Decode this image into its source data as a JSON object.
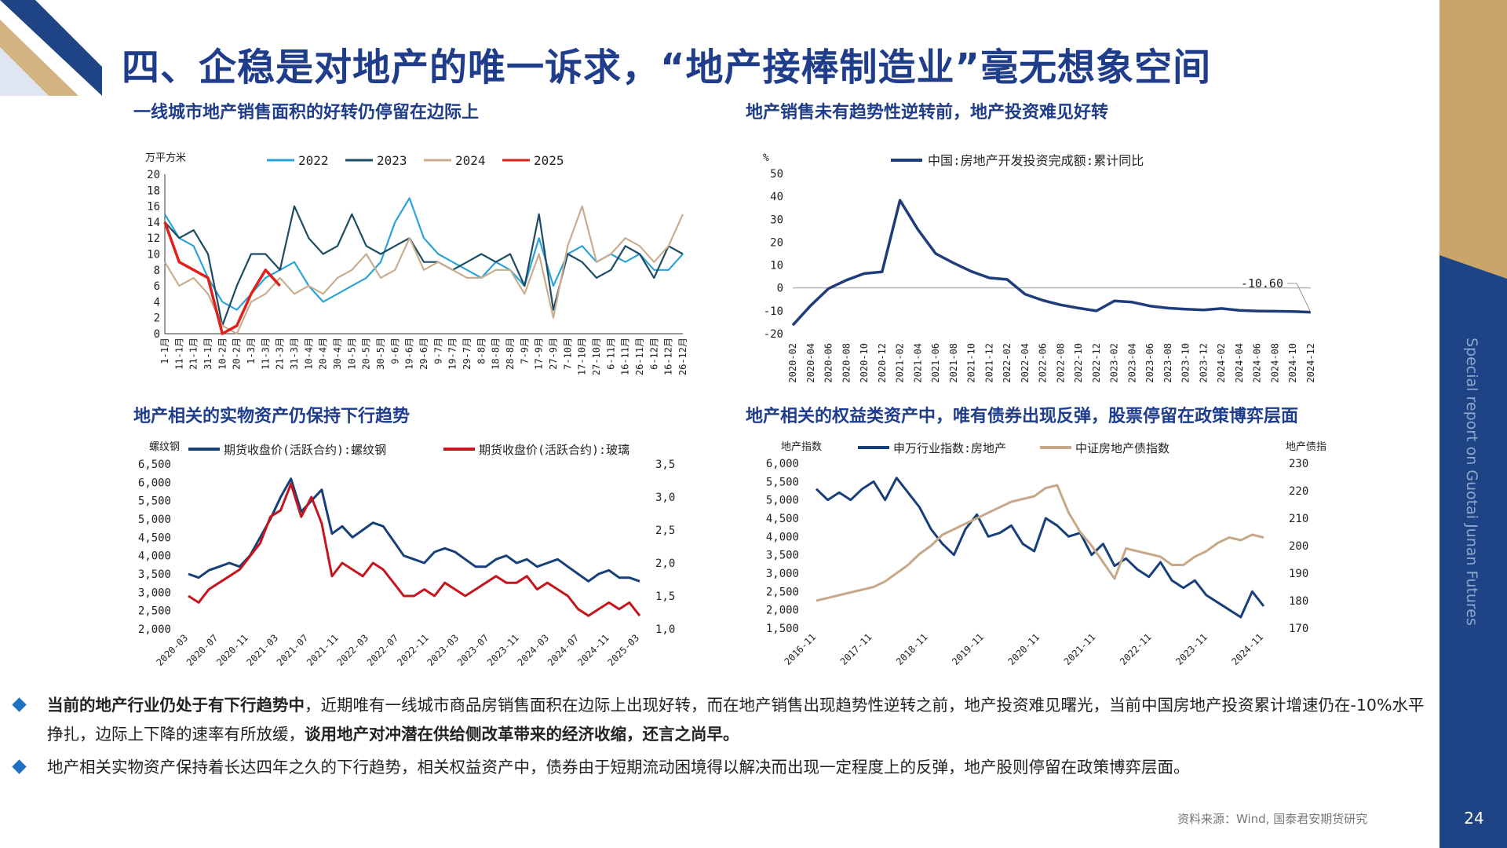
{
  "page": {
    "title": "四、企稳是对地产的唯一诉求，“地产接棒制造业”毫无想象空间",
    "side_text": "Special report on Guotai Junan Futures",
    "page_number": "24",
    "source": "资料来源：Wind, 国泰君安期货研究",
    "bullets": [
      {
        "bold1": "当前的地产行业仍处于有下行趋势中",
        "text1": "，近期唯有一线城市商品房销售面积在边际上出现好转，而在地产销售出现趋势性逆转之前，地产投资难见曙光，当前中国房地产投资累计增速仍在-10%水平挣扎，边际上下降的速率有所放缓，",
        "bold2": "谈用地产对冲潜在供给侧改革带来的经济收缩，还言之尚早。"
      },
      {
        "text1": "地产相关实物资产保持着长达四年之久的下行趋势，相关权益资产中，债券由于短期流动困境得以解决而出现一定程度上的反弹，地产股则停留在政策博弈层面。"
      }
    ],
    "colors": {
      "title": "#1f3d8a",
      "band": "#1f4486",
      "gold": "#c9a56a",
      "bullet": "#1f6fc5"
    }
  },
  "chart_data": [
    {
      "id": "c1",
      "type": "line",
      "title": "一线城市地产销售面积的好转仍停留在边际上",
      "ylabel": "万平方米",
      "ylim": [
        0,
        20
      ],
      "yticks": [
        "0",
        "2",
        "4",
        "6",
        "8",
        "10",
        "12",
        "14",
        "16",
        "18",
        "20"
      ],
      "xticks": [
        "1-1月",
        "11-1月",
        "21-1月",
        "31-1月",
        "10-2月",
        "20-2月",
        "1-3月",
        "11-3月",
        "21-3月",
        "31-3月",
        "10-4月",
        "20-4月",
        "30-4月",
        "10-5月",
        "20-5月",
        "30-5月",
        "9-6月",
        "19-6月",
        "29-6月",
        "9-7月",
        "19-7月",
        "29-7月",
        "8-8月",
        "18-8月",
        "28-8月",
        "7-9月",
        "17-9月",
        "27-9月",
        "7-10月",
        "17-10月",
        "27-10月",
        "6-11月",
        "16-11月",
        "26-11月",
        "6-12月",
        "16-12月",
        "26-12月"
      ],
      "x_count": 37,
      "legend_position": "top",
      "series": [
        {
          "name": "2022",
          "color": "#2aa3d8",
          "values": [
            15,
            12,
            11,
            7,
            4,
            3,
            5,
            7,
            8,
            9,
            6,
            4,
            5,
            6,
            7,
            9,
            14,
            17,
            12,
            10,
            9,
            8,
            7,
            9,
            8,
            6,
            12,
            6,
            10,
            11,
            9,
            10,
            9,
            10,
            8,
            8,
            10
          ]
        },
        {
          "name": "2023",
          "color": "#1d4b63",
          "values": [
            14,
            12,
            13,
            10,
            1,
            6,
            10,
            10,
            8,
            16,
            12,
            10,
            11,
            15,
            11,
            10,
            11,
            12,
            9,
            9,
            8,
            9,
            10,
            9,
            10,
            6,
            15,
            3,
            10,
            9,
            7,
            8,
            11,
            10,
            7,
            11,
            10
          ]
        },
        {
          "name": "2024",
          "color": "#c9ad8e",
          "values": [
            9,
            6,
            7,
            5,
            1,
            0,
            4,
            5,
            7,
            5,
            6,
            5,
            7,
            8,
            10,
            7,
            8,
            12,
            8,
            9,
            8,
            7,
            7,
            8,
            8,
            5,
            10,
            2,
            11,
            16,
            9,
            10,
            12,
            11,
            9,
            11,
            15
          ]
        },
        {
          "name": "2025",
          "color": "#e0201b",
          "values": [
            14,
            9,
            8,
            7,
            0,
            1,
            5,
            8,
            6
          ]
        }
      ]
    },
    {
      "id": "c2",
      "type": "line",
      "title": "地产销售未有趋势性逆转前，地产投资难见好转",
      "ylabel": "%",
      "ylim": [
        -20,
        50
      ],
      "yticks": [
        "-20",
        "-10",
        "0",
        "10",
        "20",
        "30",
        "40",
        "50"
      ],
      "xticks": [
        "2020-02",
        "2020-04",
        "2020-06",
        "2020-08",
        "2020-10",
        "2020-12",
        "2021-02",
        "2021-04",
        "2021-06",
        "2021-08",
        "2021-10",
        "2021-12",
        "2022-02",
        "2022-04",
        "2022-06",
        "2022-08",
        "2022-10",
        "2022-12",
        "2023-02",
        "2023-04",
        "2023-06",
        "2023-08",
        "2023-10",
        "2023-12",
        "2024-02",
        "2024-04",
        "2024-06",
        "2024-08",
        "2024-10",
        "2024-12"
      ],
      "legend_position": "top",
      "annotation": "-10.60",
      "series": [
        {
          "name": "中国:房地产开发投资完成额:累计同比",
          "color": "#1f3d7a",
          "values": [
            -16.3,
            -7.7,
            -0.3,
            3.4,
            6.3,
            7.0,
            38.3,
            25.6,
            15.0,
            10.9,
            7.2,
            4.4,
            3.7,
            -2.7,
            -5.4,
            -7.4,
            -8.8,
            -10.0,
            -5.7,
            -6.2,
            -7.9,
            -8.8,
            -9.3,
            -9.6,
            -9.0,
            -9.8,
            -10.1,
            -10.2,
            -10.3,
            -10.6
          ]
        }
      ]
    },
    {
      "id": "c3",
      "type": "line",
      "title": "地产相关的实物资产仍保持下行趋势",
      "ylabel": "螺纹钢",
      "ylim_left": [
        2000,
        6500
      ],
      "ylim_right": [
        1000,
        3500
      ],
      "yticks_left": [
        "2,000",
        "2,500",
        "3,000",
        "3,500",
        "4,000",
        "4,500",
        "5,000",
        "5,500",
        "6,000",
        "6,500"
      ],
      "yticks_right": [
        "1,000",
        "1,500",
        "2,000",
        "2,500",
        "3,000",
        "3,500"
      ],
      "xticks": [
        "2020-03",
        "2020-07",
        "2020-11",
        "2021-03",
        "2021-07",
        "2021-11",
        "2022-03",
        "2022-07",
        "2022-11",
        "2023-03",
        "2023-07",
        "2023-11",
        "2024-03",
        "2024-07",
        "2024-11",
        "2025-03"
      ],
      "legend_position": "top",
      "series": [
        {
          "name": "期货收盘价(活跃合约):螺纹钢",
          "color": "#173f78",
          "axis": "left",
          "values": [
            3500,
            3400,
            3600,
            3700,
            3800,
            3700,
            4000,
            4500,
            5000,
            5600,
            6100,
            5200,
            5500,
            5800,
            4600,
            4800,
            4500,
            4700,
            4900,
            4800,
            4400,
            4000,
            3900,
            3800,
            4100,
            4200,
            4100,
            3900,
            3700,
            3700,
            3900,
            4000,
            3800,
            3900,
            3700,
            3800,
            3900,
            3700,
            3500,
            3300,
            3500,
            3600,
            3400,
            3400,
            3300
          ]
        },
        {
          "name": "期货收盘价(活跃合约):玻璃",
          "color": "#c4161c",
          "axis": "right",
          "values": [
            1500,
            1400,
            1600,
            1700,
            1800,
            1900,
            2100,
            2300,
            2700,
            2800,
            3200,
            2700,
            3000,
            2600,
            1800,
            2000,
            1900,
            1800,
            2000,
            1900,
            1700,
            1500,
            1500,
            1600,
            1500,
            1700,
            1600,
            1500,
            1600,
            1700,
            1800,
            1700,
            1700,
            1800,
            1600,
            1700,
            1600,
            1500,
            1300,
            1200,
            1300,
            1400,
            1300,
            1400,
            1200
          ]
        }
      ]
    },
    {
      "id": "c4",
      "type": "line",
      "title": "地产相关的权益类资产中，唯有债券出现反弹，股票停留在政策博弈层面",
      "ylabel_left": "地产指数",
      "ylabel_right": "地产债指数",
      "ylim_left": [
        1500,
        6000
      ],
      "ylim_right": [
        170,
        230
      ],
      "yticks_left": [
        "1,500",
        "2,000",
        "2,500",
        "3,000",
        "3,500",
        "4,000",
        "4,500",
        "5,000",
        "5,500",
        "6,000"
      ],
      "yticks_right": [
        "170",
        "180",
        "190",
        "200",
        "210",
        "220",
        "230"
      ],
      "xticks": [
        "2016-11",
        "2017-11",
        "2018-11",
        "2019-11",
        "2020-11",
        "2021-11",
        "2022-11",
        "2023-11",
        "2024-11"
      ],
      "legend_position": "top",
      "series": [
        {
          "name": "申万行业指数:房地产",
          "color": "#173f78",
          "axis": "left",
          "values": [
            5300,
            5000,
            5200,
            5000,
            5300,
            5500,
            5000,
            5600,
            5200,
            4800,
            4200,
            3800,
            3500,
            4200,
            4600,
            4000,
            4100,
            4300,
            3800,
            3600,
            4500,
            4300,
            4000,
            4100,
            3500,
            3800,
            3200,
            3400,
            3100,
            2900,
            3300,
            2800,
            2600,
            2800,
            2400,
            2200,
            2000,
            1800,
            2500,
            2100
          ]
        },
        {
          "name": "中证房地产债指数",
          "color": "#c7a98a",
          "axis": "right",
          "values": [
            180,
            181,
            182,
            183,
            184,
            185,
            187,
            190,
            193,
            197,
            200,
            204,
            206,
            208,
            210,
            212,
            214,
            216,
            217,
            218,
            221,
            222,
            212,
            205,
            200,
            194,
            188,
            199,
            198,
            197,
            196,
            193,
            193,
            196,
            198,
            201,
            203,
            202,
            204,
            203
          ]
        }
      ]
    }
  ]
}
